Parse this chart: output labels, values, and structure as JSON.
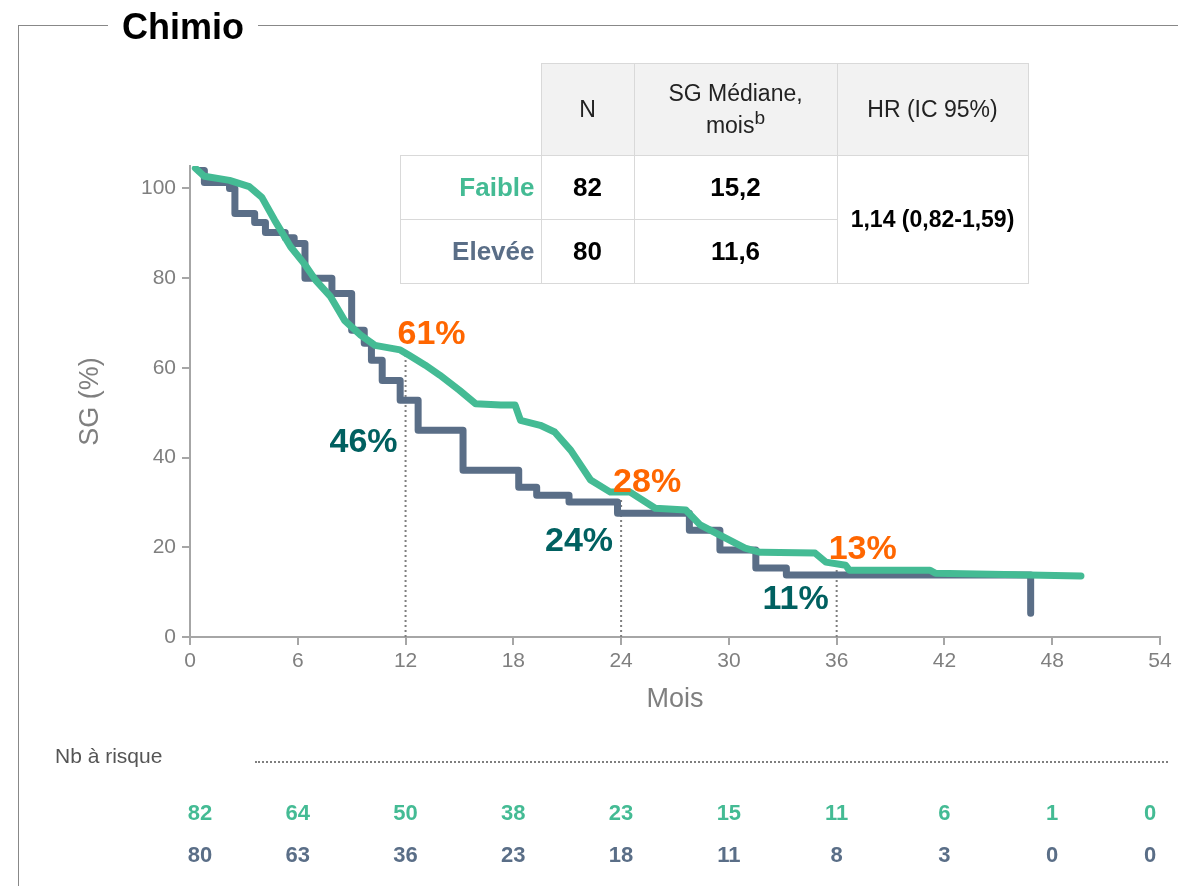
{
  "chart_data": {
    "type": "line",
    "title": "Chimio",
    "xlabel": "Mois",
    "ylabel": "SG (%)",
    "xlim": [
      0,
      54
    ],
    "xticks": [
      0,
      6,
      12,
      18,
      24,
      30,
      36,
      42,
      48,
      54
    ],
    "ylim": [
      0,
      105
    ],
    "yticks": [
      0,
      20,
      40,
      60,
      80,
      100
    ],
    "grid": false,
    "legend": "top",
    "line_style": "solid",
    "marker": "none",
    "series": [
      {
        "name": "Faible",
        "color": "#44bb94",
        "type": "line",
        "x": [
          0.3,
          0.8,
          2.2,
          3.3,
          4,
          4.7,
          5.6,
          6.4,
          7,
          7.8,
          8.6,
          9.5,
          10.3,
          11.7,
          12.2,
          13.1,
          13.9,
          15,
          15.9,
          17.3,
          18.1,
          18.4,
          19.5,
          20.3,
          21.2,
          22.3,
          23.4,
          24.5,
          25.9,
          27.6,
          28.4,
          29.5,
          30.9,
          31.7,
          34.8,
          35.4,
          36.5,
          36.7,
          41.2,
          41.5,
          49.6
        ],
        "values": [
          104.5,
          102.7,
          101.8,
          100.4,
          98,
          93,
          87,
          83,
          79.5,
          76,
          70.6,
          67.3,
          65,
          64,
          62.8,
          60.6,
          58.4,
          55,
          52,
          51.7,
          51.7,
          48.3,
          47.2,
          45.7,
          41.6,
          35,
          32.3,
          32.3,
          28.7,
          28.3,
          25,
          22.7,
          19.8,
          18.9,
          18.7,
          16.7,
          16,
          14.9,
          14.9,
          14.2,
          13.6
        ]
      },
      {
        "name": "Elevée",
        "color": "#5a6e87",
        "type": "step",
        "x": [
          0.5,
          0.8,
          2.2,
          2.5,
          3.6,
          4.2,
          5.3,
          5.8,
          6.4,
          7.9,
          9,
          9.7,
          10.1,
          10.7,
          11.7,
          12.7,
          15.2,
          18.3,
          19.3,
          21.1,
          23.8,
          27.1,
          27.8,
          29.5,
          31.5,
          33.2,
          46.7,
          46.8
        ],
        "values": [
          104,
          101.3,
          100,
          94.4,
          92.4,
          90.2,
          89,
          87.7,
          80,
          76.6,
          68.4,
          65.5,
          61.7,
          57.2,
          52.8,
          46.1,
          37.2,
          33.4,
          31.6,
          30.1,
          27.6,
          27.6,
          23.8,
          19.4,
          15.4,
          13.8,
          13.8,
          5.3
        ]
      }
    ],
    "ref_lines": [
      {
        "axis": "x",
        "value": 12,
        "color": "#7f7f7f",
        "line_style": "dotted"
      },
      {
        "axis": "x",
        "value": 24,
        "color": "#7f7f7f",
        "line_style": "dotted"
      },
      {
        "axis": "x",
        "value": 36,
        "color": "#7f7f7f",
        "line_style": "dotted"
      }
    ],
    "annotations": [
      {
        "text": "61%",
        "x": 12,
        "y": 61
      },
      {
        "text": "46%",
        "x": 12,
        "y": 46
      },
      {
        "text": "28%",
        "x": 24,
        "y": 28
      },
      {
        "text": "24%",
        "x": 24,
        "y": 24
      },
      {
        "text": "13%",
        "x": 36,
        "y": 13
      },
      {
        "text": "11%",
        "x": 36,
        "y": 11
      },
      "N",
      "SG Médiane, mois$^{b}$",
      "HR (IC 95%)",
      "82",
      "15,2",
      "80",
      "11,6",
      "1,14 (0,82-1,59)",
      "Nb à risque",
      "82",
      "64",
      "50",
      "38",
      "23",
      "15",
      "11",
      "6",
      "1",
      "0",
      "80",
      "63",
      "36",
      "23",
      "18",
      "11",
      "8",
      "3",
      "0",
      "0"
    ]
  }
}
